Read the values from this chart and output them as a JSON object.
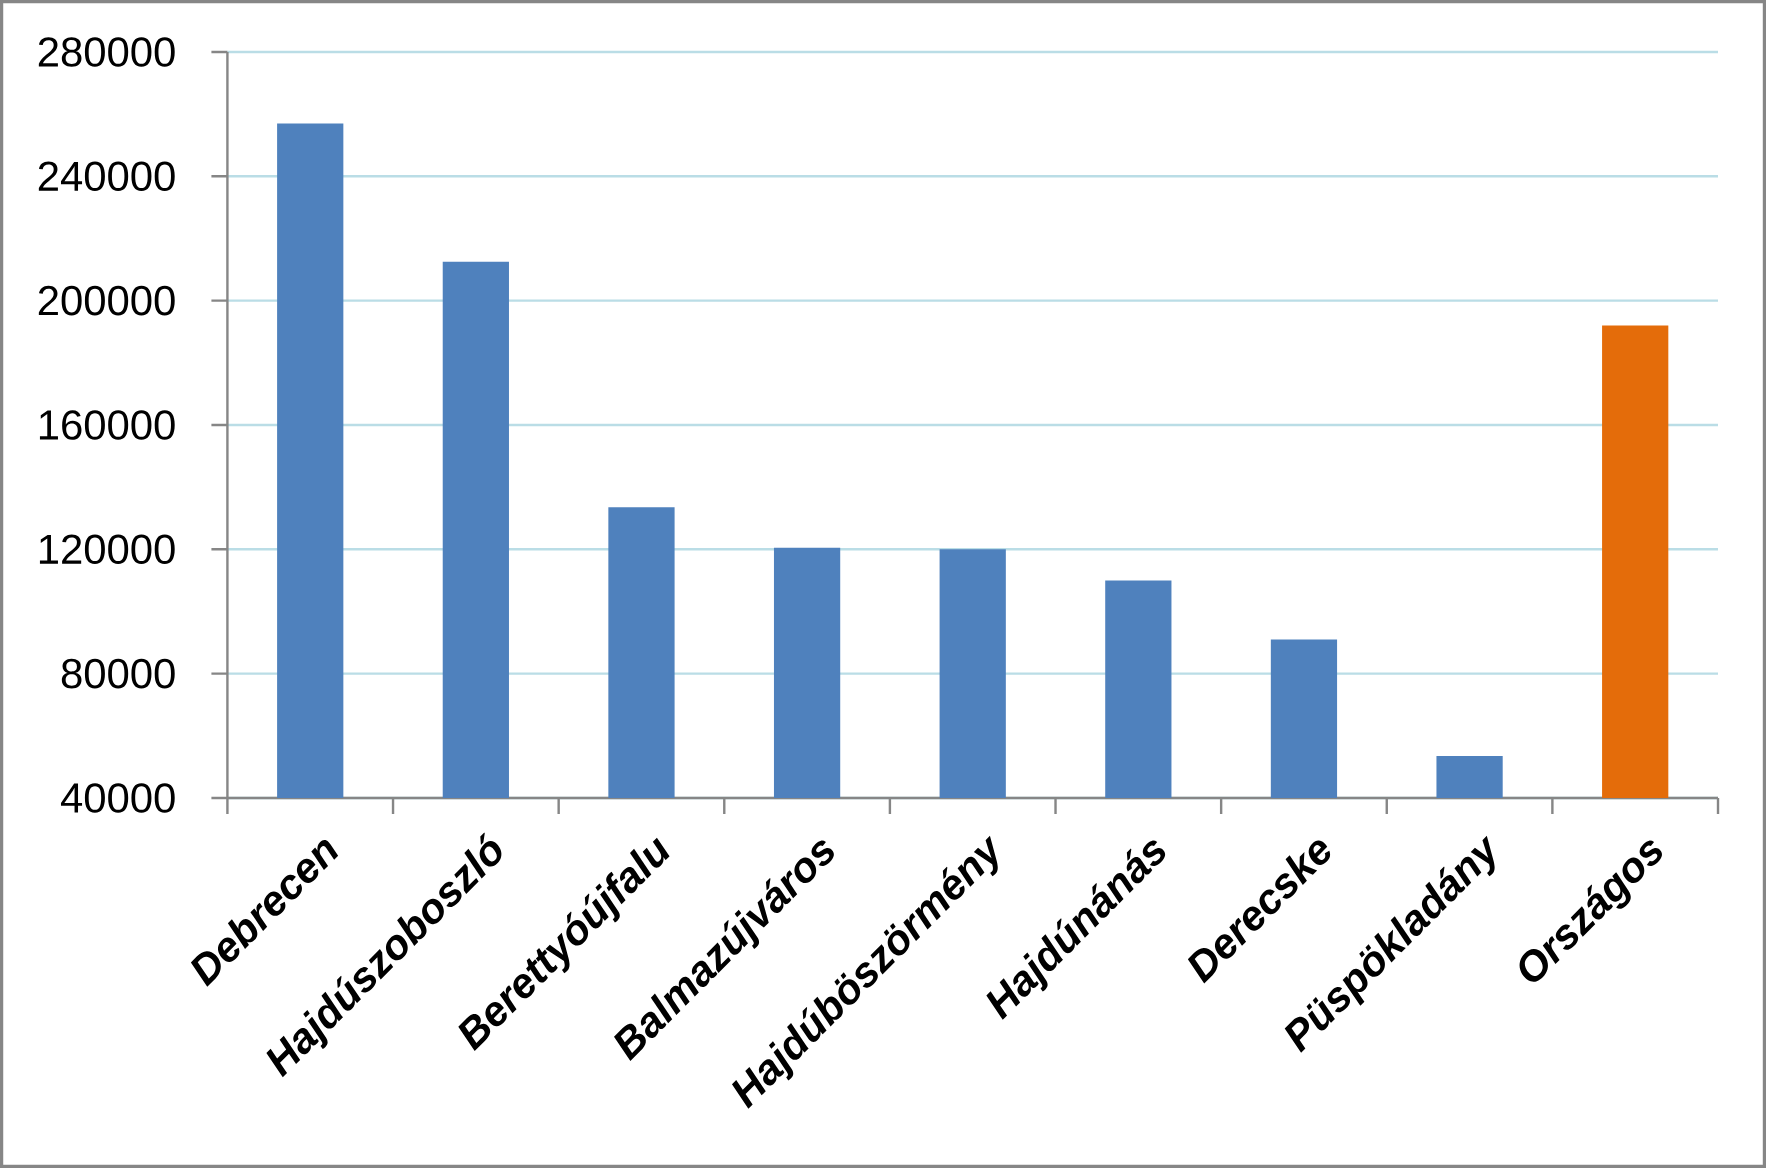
{
  "chart_data": {
    "type": "bar",
    "categories": [
      "Debrecen",
      "Hajdúszoboszló",
      "Berettyóújfalu",
      "Balmazújváros",
      "Hajdúböszörmény",
      "Hajdúnánás",
      "Derecske",
      "Püspökladány",
      "Országos"
    ],
    "values": [
      257000,
      212500,
      133500,
      120500,
      120000,
      110000,
      91000,
      53500,
      192000
    ],
    "colors": [
      "#4f81bd",
      "#4f81bd",
      "#4f81bd",
      "#4f81bd",
      "#4f81bd",
      "#4f81bd",
      "#4f81bd",
      "#4f81bd",
      "#e46c0a"
    ],
    "ylim": [
      40000,
      280000
    ],
    "yticks": [
      40000,
      80000,
      120000,
      160000,
      200000,
      240000,
      280000
    ],
    "grid": "y"
  }
}
